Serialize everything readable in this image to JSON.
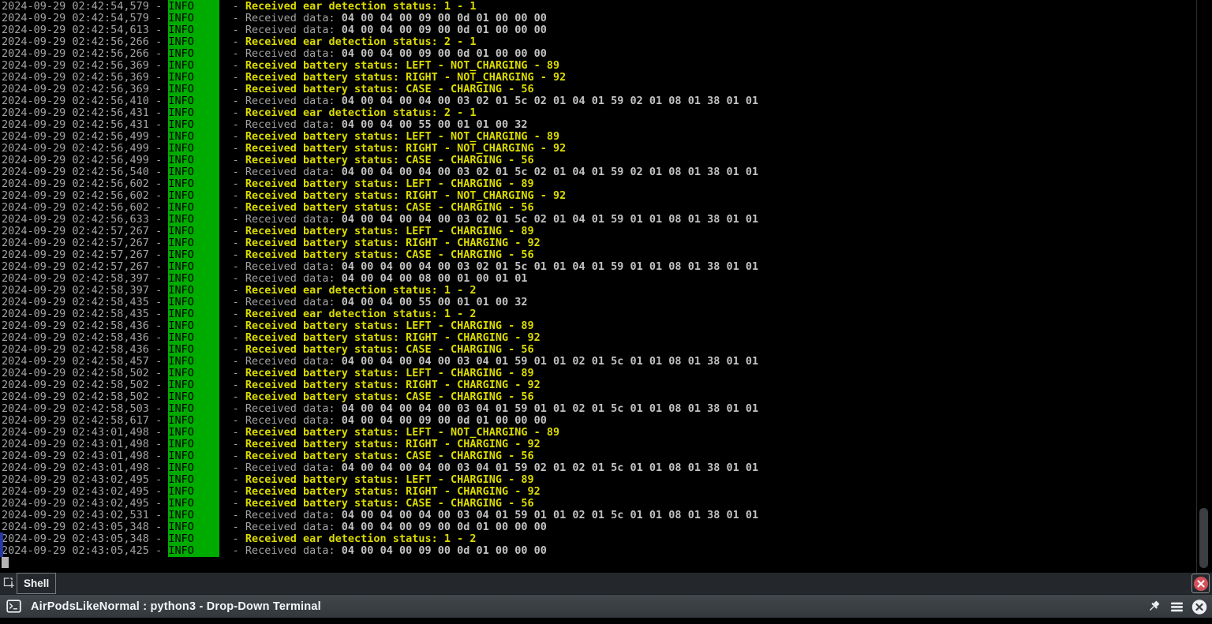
{
  "window": {
    "title_bar": {
      "title": "AirPodsLikeNormal : python3 - Drop-Down Terminal",
      "icons": [
        "terminal-icon",
        "pin-icon",
        "menu-icon",
        "close-window-icon"
      ]
    },
    "tab_bar": {
      "tabs": [
        {
          "label": "Shell"
        }
      ],
      "icons": [
        "new-tab-icon",
        "close-session-icon"
      ]
    }
  },
  "colors": {
    "terminal_background": "#000000",
    "info_badge_background": "#00ab00",
    "status_message_yellow": "#dcdc00",
    "muted_log_gray": "#a4a4a4",
    "hex_data_gray": "#c2c2c2",
    "close_button_red": "#d4505a",
    "selection_mark_blue": "#2737a3"
  },
  "terminal": {
    "level_label": "INFO",
    "log_lines": [
      {
        "time": "2024-09-29 02:42:54,579",
        "kind": "status",
        "message": "Received ear detection status: 1 - 1"
      },
      {
        "time": "2024-09-29 02:42:54,579",
        "kind": "data",
        "message": "Received data: 04 00 04 00 09 00 0d 01 00 00 00"
      },
      {
        "time": "2024-09-29 02:42:54,613",
        "kind": "data",
        "message": "Received data: 04 00 04 00 09 00 0d 01 00 00 00"
      },
      {
        "time": "2024-09-29 02:42:56,266",
        "kind": "status",
        "message": "Received ear detection status: 2 - 1"
      },
      {
        "time": "2024-09-29 02:42:56,266",
        "kind": "data",
        "message": "Received data: 04 00 04 00 09 00 0d 01 00 00 00"
      },
      {
        "time": "2024-09-29 02:42:56,369",
        "kind": "status",
        "message": "Received battery status: LEFT - NOT_CHARGING - 89"
      },
      {
        "time": "2024-09-29 02:42:56,369",
        "kind": "status",
        "message": "Received battery status: RIGHT - NOT_CHARGING - 92"
      },
      {
        "time": "2024-09-29 02:42:56,369",
        "kind": "status",
        "message": "Received battery status: CASE - CHARGING - 56"
      },
      {
        "time": "2024-09-29 02:42:56,410",
        "kind": "data",
        "message": "Received data: 04 00 04 00 04 00 03 02 01 5c 02 01 04 01 59 02 01 08 01 38 01 01"
      },
      {
        "time": "2024-09-29 02:42:56,431",
        "kind": "status",
        "message": "Received ear detection status: 2 - 1"
      },
      {
        "time": "2024-09-29 02:42:56,431",
        "kind": "data",
        "message": "Received data: 04 00 04 00 55 00 01 01 00 32"
      },
      {
        "time": "2024-09-29 02:42:56,499",
        "kind": "status",
        "message": "Received battery status: LEFT - NOT_CHARGING - 89"
      },
      {
        "time": "2024-09-29 02:42:56,499",
        "kind": "status",
        "message": "Received battery status: RIGHT - NOT_CHARGING - 92"
      },
      {
        "time": "2024-09-29 02:42:56,499",
        "kind": "status",
        "message": "Received battery status: CASE - CHARGING - 56"
      },
      {
        "time": "2024-09-29 02:42:56,540",
        "kind": "data",
        "message": "Received data: 04 00 04 00 04 00 03 02 01 5c 02 01 04 01 59 02 01 08 01 38 01 01"
      },
      {
        "time": "2024-09-29 02:42:56,602",
        "kind": "status",
        "message": "Received battery status: LEFT - CHARGING - 89"
      },
      {
        "time": "2024-09-29 02:42:56,602",
        "kind": "status",
        "message": "Received battery status: RIGHT - NOT_CHARGING - 92"
      },
      {
        "time": "2024-09-29 02:42:56,602",
        "kind": "status",
        "message": "Received battery status: CASE - CHARGING - 56"
      },
      {
        "time": "2024-09-29 02:42:56,633",
        "kind": "data",
        "message": "Received data: 04 00 04 00 04 00 03 02 01 5c 02 01 04 01 59 01 01 08 01 38 01 01"
      },
      {
        "time": "2024-09-29 02:42:57,267",
        "kind": "status",
        "message": "Received battery status: LEFT - CHARGING - 89"
      },
      {
        "time": "2024-09-29 02:42:57,267",
        "kind": "status",
        "message": "Received battery status: RIGHT - CHARGING - 92"
      },
      {
        "time": "2024-09-29 02:42:57,267",
        "kind": "status",
        "message": "Received battery status: CASE - CHARGING - 56"
      },
      {
        "time": "2024-09-29 02:42:57,267",
        "kind": "data",
        "message": "Received data: 04 00 04 00 04 00 03 02 01 5c 01 01 04 01 59 01 01 08 01 38 01 01"
      },
      {
        "time": "2024-09-29 02:42:58,397",
        "kind": "data",
        "message": "Received data: 04 00 04 00 08 00 01 00 01 01"
      },
      {
        "time": "2024-09-29 02:42:58,397",
        "kind": "status",
        "message": "Received ear detection status: 1 - 2"
      },
      {
        "time": "2024-09-29 02:42:58,435",
        "kind": "data",
        "message": "Received data: 04 00 04 00 55 00 01 01 00 32"
      },
      {
        "time": "2024-09-29 02:42:58,435",
        "kind": "status",
        "message": "Received ear detection status: 1 - 2"
      },
      {
        "time": "2024-09-29 02:42:58,436",
        "kind": "status",
        "message": "Received battery status: LEFT - CHARGING - 89"
      },
      {
        "time": "2024-09-29 02:42:58,436",
        "kind": "status",
        "message": "Received battery status: RIGHT - CHARGING - 92"
      },
      {
        "time": "2024-09-29 02:42:58,436",
        "kind": "status",
        "message": "Received battery status: CASE - CHARGING - 56"
      },
      {
        "time": "2024-09-29 02:42:58,457",
        "kind": "data",
        "message": "Received data: 04 00 04 00 04 00 03 04 01 59 01 01 02 01 5c 01 01 08 01 38 01 01"
      },
      {
        "time": "2024-09-29 02:42:58,502",
        "kind": "status",
        "message": "Received battery status: LEFT - CHARGING - 89"
      },
      {
        "time": "2024-09-29 02:42:58,502",
        "kind": "status",
        "message": "Received battery status: RIGHT - CHARGING - 92"
      },
      {
        "time": "2024-09-29 02:42:58,502",
        "kind": "status",
        "message": "Received battery status: CASE - CHARGING - 56"
      },
      {
        "time": "2024-09-29 02:42:58,503",
        "kind": "data",
        "message": "Received data: 04 00 04 00 04 00 03 04 01 59 01 01 02 01 5c 01 01 08 01 38 01 01"
      },
      {
        "time": "2024-09-29 02:42:58,617",
        "kind": "data",
        "message": "Received data: 04 00 04 00 09 00 0d 01 00 00 00"
      },
      {
        "time": "2024-09-29 02:43:01,498",
        "kind": "status",
        "message": "Received battery status: LEFT - NOT_CHARGING - 89"
      },
      {
        "time": "2024-09-29 02:43:01,498",
        "kind": "status",
        "message": "Received battery status: RIGHT - CHARGING - 92"
      },
      {
        "time": "2024-09-29 02:43:01,498",
        "kind": "status",
        "message": "Received battery status: CASE - CHARGING - 56"
      },
      {
        "time": "2024-09-29 02:43:01,498",
        "kind": "data",
        "message": "Received data: 04 00 04 00 04 00 03 04 01 59 02 01 02 01 5c 01 01 08 01 38 01 01"
      },
      {
        "time": "2024-09-29 02:43:02,495",
        "kind": "status",
        "message": "Received battery status: LEFT - CHARGING - 89"
      },
      {
        "time": "2024-09-29 02:43:02,495",
        "kind": "status",
        "message": "Received battery status: RIGHT - CHARGING - 92"
      },
      {
        "time": "2024-09-29 02:43:02,495",
        "kind": "status",
        "message": "Received battery status: CASE - CHARGING - 56"
      },
      {
        "time": "2024-09-29 02:43:02,531",
        "kind": "data",
        "message": "Received data: 04 00 04 00 04 00 03 04 01 59 01 01 02 01 5c 01 01 08 01 38 01 01"
      },
      {
        "time": "2024-09-29 02:43:05,348",
        "kind": "data",
        "message": "Received data: 04 00 04 00 09 00 0d 01 00 00 00"
      },
      {
        "time": "2024-09-29 02:43:05,348",
        "kind": "status",
        "message": "Received ear detection status: 1 - 2"
      },
      {
        "time": "2024-09-29 02:43:05,425",
        "kind": "data",
        "message": "Received data: 04 00 04 00 09 00 0d 01 00 00 00"
      }
    ]
  }
}
